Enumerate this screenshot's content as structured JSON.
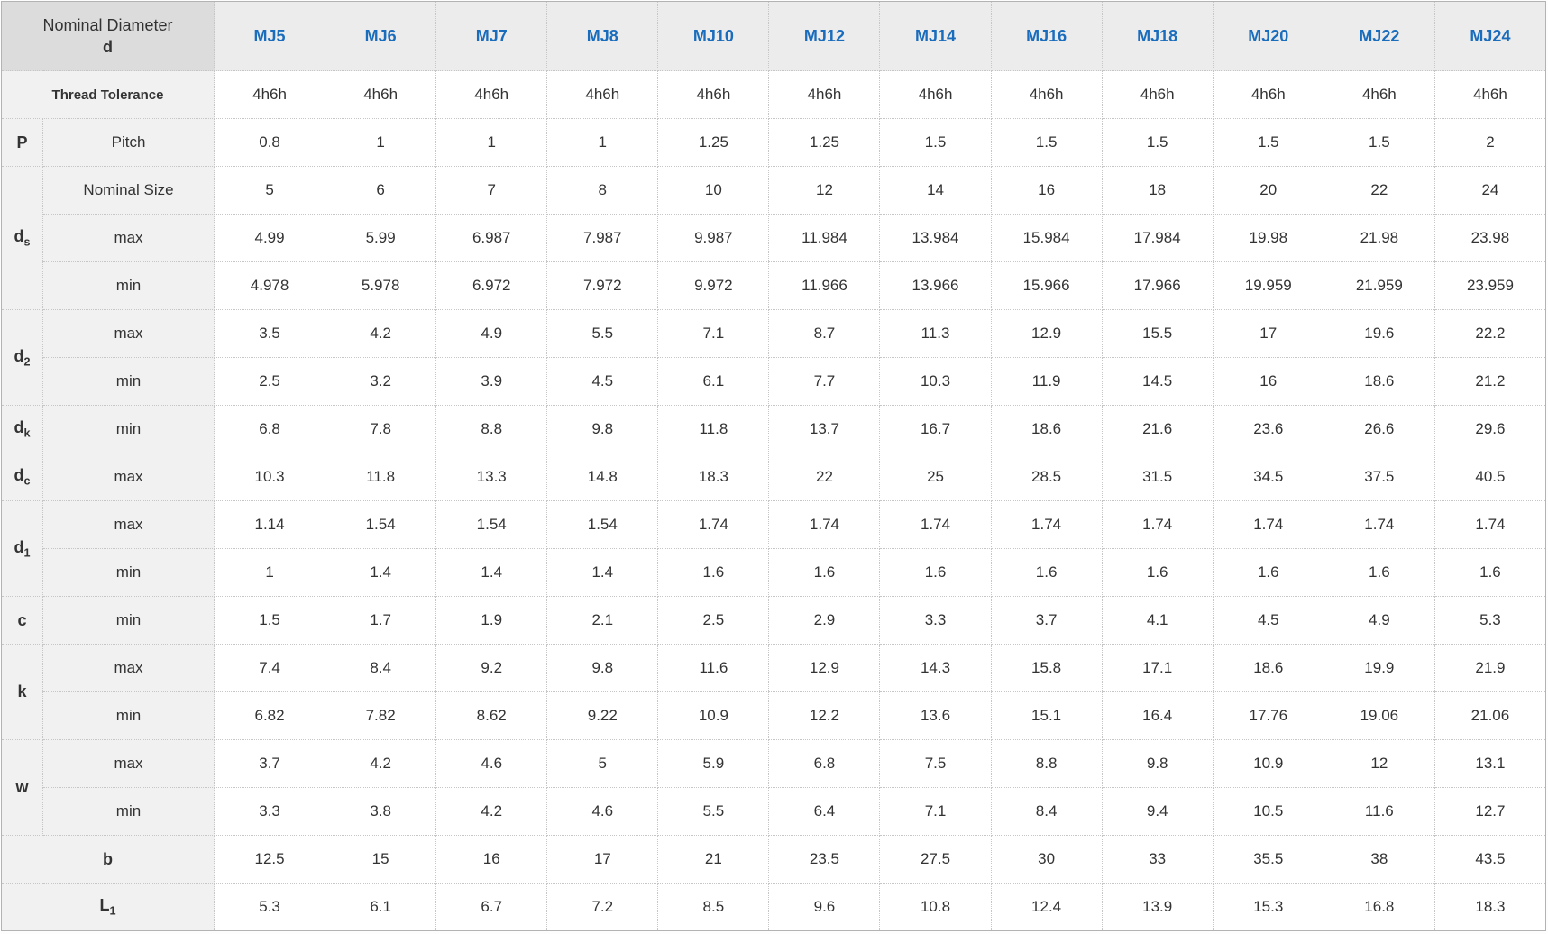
{
  "header": {
    "corner": {
      "line1": "Nominal Diameter",
      "line2": "d"
    },
    "columns": [
      "MJ5",
      "MJ6",
      "MJ7",
      "MJ8",
      "MJ10",
      "MJ12",
      "MJ14",
      "MJ16",
      "MJ18",
      "MJ20",
      "MJ22",
      "MJ24"
    ]
  },
  "colors": {
    "accent_blue": "#1a6cbc",
    "corner_header_bg": "#dcdcdc",
    "column_header_bg": "#ececec",
    "label_column_bg": "#f1f1f1",
    "border": "#c6c6c6",
    "text": "#333333"
  },
  "rows": [
    {
      "full_label": {
        "base": "Thread Tolerance"
      },
      "style": "tolerance",
      "values": [
        "4h6h",
        "4h6h",
        "4h6h",
        "4h6h",
        "4h6h",
        "4h6h",
        "4h6h",
        "4h6h",
        "4h6h",
        "4h6h",
        "4h6h",
        "4h6h"
      ]
    },
    {
      "group": {
        "base": "P",
        "rowspan": 1
      },
      "label": "Pitch",
      "values": [
        "0.8",
        "1",
        "1",
        "1",
        "1.25",
        "1.25",
        "1.5",
        "1.5",
        "1.5",
        "1.5",
        "1.5",
        "2"
      ]
    },
    {
      "group": {
        "base": "d",
        "sub": "s",
        "rowspan": 3
      },
      "label": "Nominal Size",
      "values": [
        "5",
        "6",
        "7",
        "8",
        "10",
        "12",
        "14",
        "16",
        "18",
        "20",
        "22",
        "24"
      ]
    },
    {
      "label": "max",
      "values": [
        "4.99",
        "5.99",
        "6.987",
        "7.987",
        "9.987",
        "11.984",
        "13.984",
        "15.984",
        "17.984",
        "19.98",
        "21.98",
        "23.98"
      ]
    },
    {
      "label": "min",
      "values": [
        "4.978",
        "5.978",
        "6.972",
        "7.972",
        "9.972",
        "11.966",
        "13.966",
        "15.966",
        "17.966",
        "19.959",
        "21.959",
        "23.959"
      ]
    },
    {
      "group": {
        "base": "d",
        "sub": "2",
        "rowspan": 2
      },
      "label": "max",
      "values": [
        "3.5",
        "4.2",
        "4.9",
        "5.5",
        "7.1",
        "8.7",
        "11.3",
        "12.9",
        "15.5",
        "17",
        "19.6",
        "22.2"
      ]
    },
    {
      "label": "min",
      "values": [
        "2.5",
        "3.2",
        "3.9",
        "4.5",
        "6.1",
        "7.7",
        "10.3",
        "11.9",
        "14.5",
        "16",
        "18.6",
        "21.2"
      ]
    },
    {
      "group": {
        "base": "d",
        "sub": "k",
        "rowspan": 1
      },
      "label": "min",
      "values": [
        "6.8",
        "7.8",
        "8.8",
        "9.8",
        "11.8",
        "13.7",
        "16.7",
        "18.6",
        "21.6",
        "23.6",
        "26.6",
        "29.6"
      ]
    },
    {
      "group": {
        "base": "d",
        "sub": "c",
        "rowspan": 1
      },
      "label": "max",
      "values": [
        "10.3",
        "11.8",
        "13.3",
        "14.8",
        "18.3",
        "22",
        "25",
        "28.5",
        "31.5",
        "34.5",
        "37.5",
        "40.5"
      ]
    },
    {
      "group": {
        "base": "d",
        "sub": "1",
        "rowspan": 2
      },
      "label": "max",
      "values": [
        "1.14",
        "1.54",
        "1.54",
        "1.54",
        "1.74",
        "1.74",
        "1.74",
        "1.74",
        "1.74",
        "1.74",
        "1.74",
        "1.74"
      ]
    },
    {
      "label": "min",
      "values": [
        "1",
        "1.4",
        "1.4",
        "1.4",
        "1.6",
        "1.6",
        "1.6",
        "1.6",
        "1.6",
        "1.6",
        "1.6",
        "1.6"
      ]
    },
    {
      "group": {
        "base": "c",
        "rowspan": 1
      },
      "label": "min",
      "values": [
        "1.5",
        "1.7",
        "1.9",
        "2.1",
        "2.5",
        "2.9",
        "3.3",
        "3.7",
        "4.1",
        "4.5",
        "4.9",
        "5.3"
      ]
    },
    {
      "group": {
        "base": "k",
        "rowspan": 2
      },
      "label": "max",
      "values": [
        "7.4",
        "8.4",
        "9.2",
        "9.8",
        "11.6",
        "12.9",
        "14.3",
        "15.8",
        "17.1",
        "18.6",
        "19.9",
        "21.9"
      ]
    },
    {
      "label": "min",
      "values": [
        "6.82",
        "7.82",
        "8.62",
        "9.22",
        "10.9",
        "12.2",
        "13.6",
        "15.1",
        "16.4",
        "17.76",
        "19.06",
        "21.06"
      ]
    },
    {
      "group": {
        "base": "w",
        "rowspan": 2
      },
      "label": "max",
      "values": [
        "3.7",
        "4.2",
        "4.6",
        "5",
        "5.9",
        "6.8",
        "7.5",
        "8.8",
        "9.8",
        "10.9",
        "12",
        "13.1"
      ]
    },
    {
      "label": "min",
      "values": [
        "3.3",
        "3.8",
        "4.2",
        "4.6",
        "5.5",
        "6.4",
        "7.1",
        "8.4",
        "9.4",
        "10.5",
        "11.6",
        "12.7"
      ]
    },
    {
      "full_label": {
        "base": "b"
      },
      "style": "bold",
      "values": [
        "12.5",
        "15",
        "16",
        "17",
        "21",
        "23.5",
        "27.5",
        "30",
        "33",
        "35.5",
        "38",
        "43.5"
      ]
    },
    {
      "full_label": {
        "base": "L",
        "sub": "1"
      },
      "style": "bold",
      "values": [
        "5.3",
        "6.1",
        "6.7",
        "7.2",
        "8.5",
        "9.6",
        "10.8",
        "12.4",
        "13.9",
        "15.3",
        "16.8",
        "18.3"
      ]
    }
  ]
}
